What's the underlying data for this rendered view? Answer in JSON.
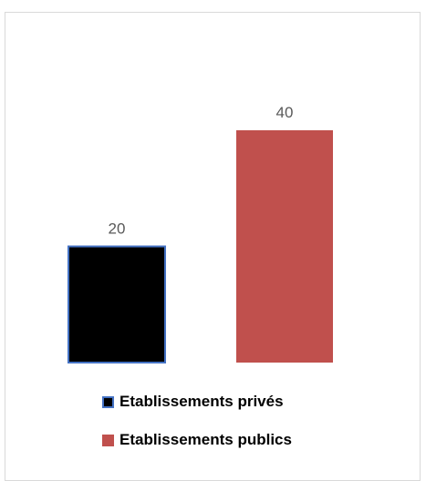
{
  "chart_data": {
    "type": "bar",
    "title": "",
    "xlabel": "",
    "ylabel": "",
    "ylim": [
      0,
      40
    ],
    "grid": false,
    "legend_position": "bottom",
    "series": [
      {
        "name": "Etablissements privés",
        "values": [
          20
        ],
        "color": "#000000",
        "border_color": "#4472c4"
      },
      {
        "name": "Etablissements publics",
        "values": [
          40
        ],
        "color": "#c0504d",
        "border_color": "#c0504d"
      }
    ],
    "data_labels": [
      "20",
      "40"
    ]
  },
  "legend": {
    "items": [
      {
        "label": "Etablissements privés"
      },
      {
        "label": "Etablissements publics"
      }
    ]
  }
}
